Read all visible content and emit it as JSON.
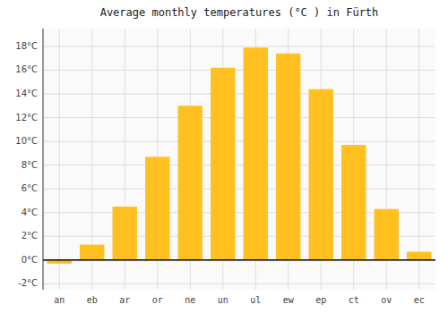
{
  "chart_data": {
    "type": "bar",
    "title": "Average monthly temperatures (°C ) in Fürth",
    "categories": [
      "an",
      "eb",
      "ar",
      "or",
      "ne",
      "un",
      "ul",
      "ew",
      "ep",
      "ct",
      "ov",
      "ec"
    ],
    "values": [
      -0.3,
      1.3,
      4.5,
      8.7,
      13.0,
      16.2,
      17.9,
      17.4,
      14.4,
      9.7,
      4.3,
      0.7
    ],
    "color": "#FFC020",
    "ylim": [
      -2.5,
      19.5
    ],
    "yticks": [
      {
        "value": -2,
        "label": "-2°C"
      },
      {
        "value": 0,
        "label": "0°C"
      },
      {
        "value": 2,
        "label": "2°C"
      },
      {
        "value": 4,
        "label": "4°C"
      },
      {
        "value": 6,
        "label": "6°C"
      },
      {
        "value": 8,
        "label": "8°C"
      },
      {
        "value": 10,
        "label": "10°C"
      },
      {
        "value": 12,
        "label": "12°C"
      },
      {
        "value": 14,
        "label": "14°C"
      },
      {
        "value": 16,
        "label": "16°C"
      },
      {
        "value": 18,
        "label": "18°C"
      }
    ],
    "grid": true
  }
}
